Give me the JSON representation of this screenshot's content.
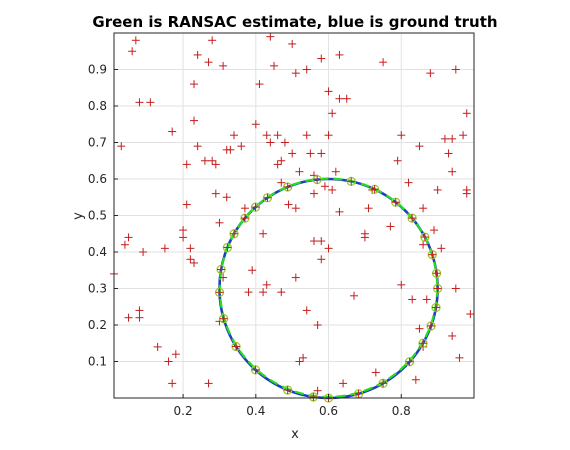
{
  "chart_data": {
    "type": "scatter",
    "title": "Green is RANSAC estimate, blue is ground truth",
    "xlabel": "x",
    "ylabel": "y",
    "xlim": [
      0.01,
      1.0
    ],
    "ylim": [
      0.0,
      1.0
    ],
    "x_ticks": [
      "0.2",
      "0.4",
      "0.6",
      "0.8"
    ],
    "x_tick_values": [
      0.2,
      0.4,
      0.6,
      0.8
    ],
    "y_ticks": [
      "0.1",
      "0.2",
      "0.3",
      "0.4",
      "0.5",
      "0.6",
      "0.7",
      "0.8",
      "0.9"
    ],
    "y_tick_values": [
      0.1,
      0.2,
      0.3,
      0.4,
      0.5,
      0.6,
      0.7,
      0.8,
      0.9
    ],
    "grid": true,
    "colors": {
      "points": "#c41e1e",
      "inliers": "#9acd32",
      "ground_truth": "#1f3fbf",
      "ransac": "#22dd22"
    },
    "ground_truth_circle": {
      "cx": 0.6,
      "cy": 0.3,
      "r": 0.3
    },
    "ransac_circle": {
      "cx": 0.6,
      "cy": 0.302,
      "r": 0.299
    },
    "inlier_angles_deg": [
      0,
      8,
      18,
      28,
      40,
      52,
      65,
      78,
      96,
      112,
      124,
      132,
      140,
      150,
      158,
      170,
      182,
      196,
      212,
      228,
      248,
      262,
      270,
      286,
      300,
      318,
      330,
      340,
      350
    ],
    "points": [
      [
        0.01,
        0.34
      ],
      [
        0.03,
        0.69
      ],
      [
        0.04,
        0.42
      ],
      [
        0.05,
        0.44
      ],
      [
        0.06,
        0.95
      ],
      [
        0.07,
        0.98
      ],
      [
        0.08,
        0.81
      ],
      [
        0.08,
        0.24
      ],
      [
        0.09,
        0.4
      ],
      [
        0.11,
        0.81
      ],
      [
        0.05,
        0.22
      ],
      [
        0.08,
        0.22
      ],
      [
        0.13,
        0.14
      ],
      [
        0.15,
        0.41
      ],
      [
        0.16,
        0.1
      ],
      [
        0.17,
        0.73
      ],
      [
        0.17,
        0.04
      ],
      [
        0.18,
        0.12
      ],
      [
        0.2,
        0.46
      ],
      [
        0.2,
        0.44
      ],
      [
        0.21,
        0.64
      ],
      [
        0.21,
        0.53
      ],
      [
        0.22,
        0.41
      ],
      [
        0.22,
        0.38
      ],
      [
        0.23,
        0.86
      ],
      [
        0.23,
        0.76
      ],
      [
        0.23,
        0.37
      ],
      [
        0.24,
        0.94
      ],
      [
        0.24,
        0.69
      ],
      [
        0.26,
        0.65
      ],
      [
        0.27,
        0.92
      ],
      [
        0.27,
        0.04
      ],
      [
        0.28,
        0.98
      ],
      [
        0.28,
        0.65
      ],
      [
        0.29,
        0.64
      ],
      [
        0.29,
        0.56
      ],
      [
        0.3,
        0.48
      ],
      [
        0.3,
        0.21
      ],
      [
        0.31,
        0.91
      ],
      [
        0.31,
        0.33
      ],
      [
        0.32,
        0.68
      ],
      [
        0.32,
        0.55
      ],
      [
        0.33,
        0.68
      ],
      [
        0.34,
        0.72
      ],
      [
        0.36,
        0.69
      ],
      [
        0.37,
        0.52
      ],
      [
        0.38,
        0.29
      ],
      [
        0.39,
        0.35
      ],
      [
        0.4,
        0.75
      ],
      [
        0.41,
        0.86
      ],
      [
        0.42,
        0.45
      ],
      [
        0.42,
        0.29
      ],
      [
        0.43,
        0.72
      ],
      [
        0.43,
        0.31
      ],
      [
        0.44,
        0.99
      ],
      [
        0.44,
        0.7
      ],
      [
        0.45,
        0.91
      ],
      [
        0.46,
        0.72
      ],
      [
        0.46,
        0.64
      ],
      [
        0.47,
        0.65
      ],
      [
        0.47,
        0.59
      ],
      [
        0.47,
        0.29
      ],
      [
        0.48,
        0.7
      ],
      [
        0.49,
        0.53
      ],
      [
        0.5,
        0.97
      ],
      [
        0.5,
        0.67
      ],
      [
        0.51,
        0.89
      ],
      [
        0.51,
        0.52
      ],
      [
        0.51,
        0.33
      ],
      [
        0.52,
        0.62
      ],
      [
        0.52,
        0.1
      ],
      [
        0.53,
        0.11
      ],
      [
        0.54,
        0.9
      ],
      [
        0.54,
        0.72
      ],
      [
        0.54,
        0.24
      ],
      [
        0.55,
        0.67
      ],
      [
        0.56,
        0.61
      ],
      [
        0.56,
        0.56
      ],
      [
        0.56,
        0.43
      ],
      [
        0.57,
        0.2
      ],
      [
        0.57,
        0.02
      ],
      [
        0.58,
        0.93
      ],
      [
        0.58,
        0.67
      ],
      [
        0.58,
        0.43
      ],
      [
        0.58,
        0.38
      ],
      [
        0.59,
        0.58
      ],
      [
        0.6,
        0.84
      ],
      [
        0.6,
        0.72
      ],
      [
        0.6,
        0.41
      ],
      [
        0.61,
        0.78
      ],
      [
        0.61,
        0.57
      ],
      [
        0.62,
        0.62
      ],
      [
        0.63,
        0.94
      ],
      [
        0.63,
        0.82
      ],
      [
        0.63,
        0.51
      ],
      [
        0.64,
        0.04
      ],
      [
        0.65,
        0.82
      ],
      [
        0.67,
        0.28
      ],
      [
        0.7,
        0.45
      ],
      [
        0.7,
        0.44
      ],
      [
        0.71,
        0.52
      ],
      [
        0.72,
        0.57
      ],
      [
        0.73,
        0.07
      ],
      [
        0.75,
        0.92
      ],
      [
        0.77,
        0.47
      ],
      [
        0.79,
        0.65
      ],
      [
        0.8,
        0.72
      ],
      [
        0.8,
        0.31
      ],
      [
        0.82,
        0.59
      ],
      [
        0.84,
        0.05
      ],
      [
        0.85,
        0.69
      ],
      [
        0.86,
        0.52
      ],
      [
        0.86,
        0.42
      ],
      [
        0.87,
        0.27
      ],
      [
        0.88,
        0.89
      ],
      [
        0.89,
        0.46
      ],
      [
        0.9,
        0.57
      ],
      [
        0.91,
        0.41
      ],
      [
        0.92,
        0.71
      ],
      [
        0.93,
        0.67
      ],
      [
        0.94,
        0.62
      ],
      [
        0.94,
        0.71
      ],
      [
        0.94,
        0.17
      ],
      [
        0.95,
        0.9
      ],
      [
        0.95,
        0.3
      ],
      [
        0.96,
        0.11
      ],
      [
        0.97,
        0.72
      ],
      [
        0.98,
        0.78
      ],
      [
        0.98,
        0.57
      ],
      [
        0.98,
        0.56
      ],
      [
        0.99,
        0.23
      ],
      [
        0.86,
        0.14
      ],
      [
        0.83,
        0.27
      ],
      [
        0.85,
        0.19
      ]
    ]
  }
}
